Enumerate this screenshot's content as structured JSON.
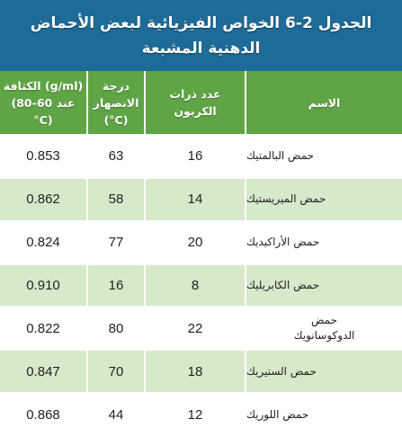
{
  "title": {
    "line1": "الجدول 2-6 الخواص الفيزيائية لبعض الأحماض",
    "line2": "الدهنية المشبعة"
  },
  "headers": {
    "name": "الاسم",
    "carbons": [
      "عدد ذرات",
      "الكربون"
    ],
    "melting": [
      "درجة الانصهار",
      "(°C)"
    ],
    "density": [
      "الكثافة (g/ml)",
      "(عند 60-80 °C)"
    ]
  },
  "rows": [
    {
      "name": "حمض البالمتيك",
      "carbons": "16",
      "melting": "63",
      "density": "0.853"
    },
    {
      "name": "حمض الميريستيك",
      "carbons": "14",
      "melting": "58",
      "density": "0.862"
    },
    {
      "name": "حمض الأراكيديك",
      "carbons": "20",
      "melting": "77",
      "density": "0.824"
    },
    {
      "name": "حمض الكابريليك",
      "carbons": "8",
      "melting": "16",
      "density": "0.910"
    },
    {
      "name_line1": "حمض",
      "name_line2": "الدوكوسانويك",
      "carbons": "22",
      "melting": "80",
      "density": "0.822"
    },
    {
      "name": "حمض الستيريك",
      "carbons": "18",
      "melting": "70",
      "density": "0.847"
    },
    {
      "name": "حمض اللوريك",
      "carbons": "12",
      "melting": "44",
      "density": "0.868"
    }
  ],
  "colors": {
    "title_bg": "#1d6b96",
    "header_bg": "#5fa445",
    "row_alt_bg": "#d6e9c9"
  }
}
